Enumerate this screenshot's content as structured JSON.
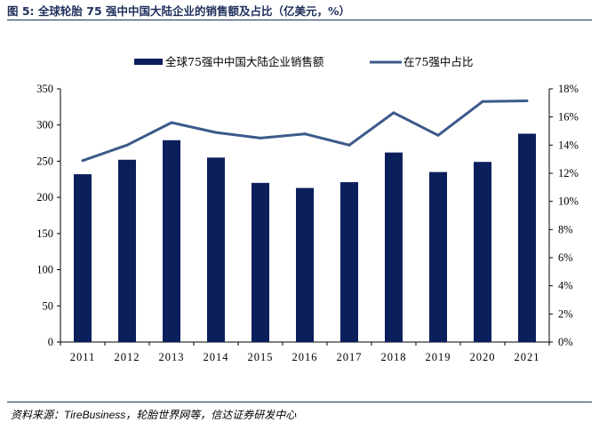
{
  "header": {
    "title": "图 5: 全球轮胎 75 强中中国大陆企业的销售额及占比（亿美元，%）"
  },
  "footer": {
    "source_prefix": "资料来源：",
    "source_en": "TireBusiness",
    "source_suffix": "，轮胎世界网等，信达证券研发中心"
  },
  "chart_data": {
    "type": "bar",
    "categories": [
      "2011",
      "2012",
      "2013",
      "2014",
      "2015",
      "2016",
      "2017",
      "2018",
      "2019",
      "2020",
      "2021"
    ],
    "series": [
      {
        "name": "全球75强中中国大陆企业销售额",
        "type": "bar",
        "axis": "left",
        "color": "#0b1f5c",
        "values": [
          232,
          252,
          279,
          255,
          220,
          213,
          221,
          262,
          235,
          249,
          288
        ]
      },
      {
        "name": "在75强中占比",
        "type": "line",
        "axis": "right",
        "color": "#3c5a8a",
        "values": [
          12.9,
          14.0,
          15.6,
          14.9,
          14.5,
          14.8,
          14.0,
          16.3,
          14.7,
          17.1,
          17.15
        ]
      }
    ],
    "y_left": {
      "ylim": [
        0,
        350
      ],
      "ticks": [
        "0",
        "50",
        "100",
        "150",
        "200",
        "250",
        "300",
        "350"
      ]
    },
    "y_right": {
      "ylim": [
        0,
        18
      ],
      "ticks": [
        "0%",
        "2%",
        "4%",
        "6%",
        "8%",
        "10%",
        "12%",
        "14%",
        "16%",
        "18%"
      ]
    },
    "legend_position": "top-center",
    "grid": false
  }
}
